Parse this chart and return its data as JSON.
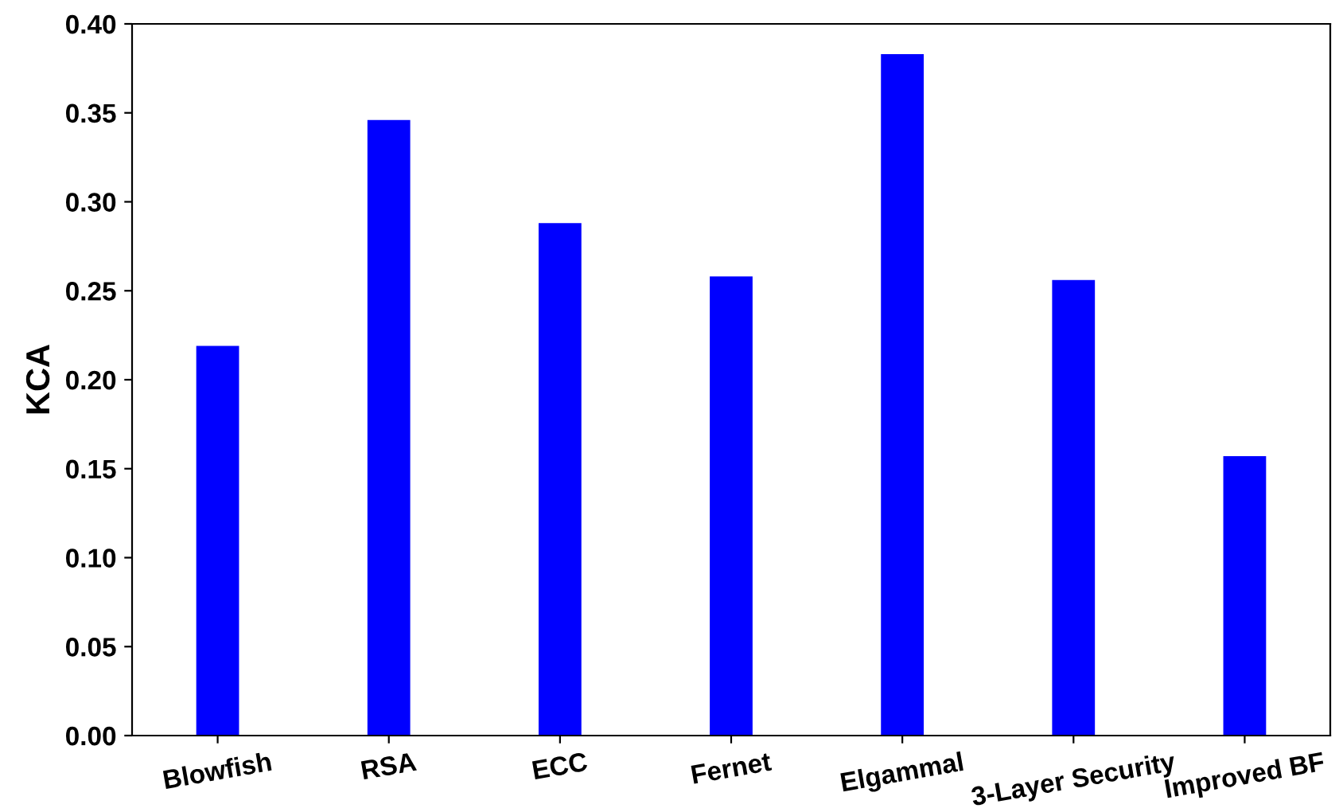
{
  "chart_data": {
    "type": "bar",
    "ylabel": "KCA",
    "categories": [
      "Blowfish",
      "RSA",
      "ECC",
      "Fernet",
      "Elgammal",
      "3-Layer Security",
      "Improved BF"
    ],
    "values": [
      0.219,
      0.346,
      0.288,
      0.258,
      0.383,
      0.256,
      0.157
    ],
    "color": "#0000ff",
    "ylim": [
      0,
      0.4
    ],
    "yticks": [
      {
        "value": 0,
        "label": "0.00"
      },
      {
        "value": 0.05,
        "label": "0.05"
      },
      {
        "value": 0.1,
        "label": "0.10"
      },
      {
        "value": 0.15,
        "label": "0.15"
      },
      {
        "value": 0.2,
        "label": "0.20"
      },
      {
        "value": 0.25,
        "label": "0.25"
      },
      {
        "value": 0.3,
        "label": "0.30"
      },
      {
        "value": 0.35,
        "label": "0.35"
      },
      {
        "value": 0.4,
        "label": "0.40"
      }
    ],
    "grid": false
  }
}
